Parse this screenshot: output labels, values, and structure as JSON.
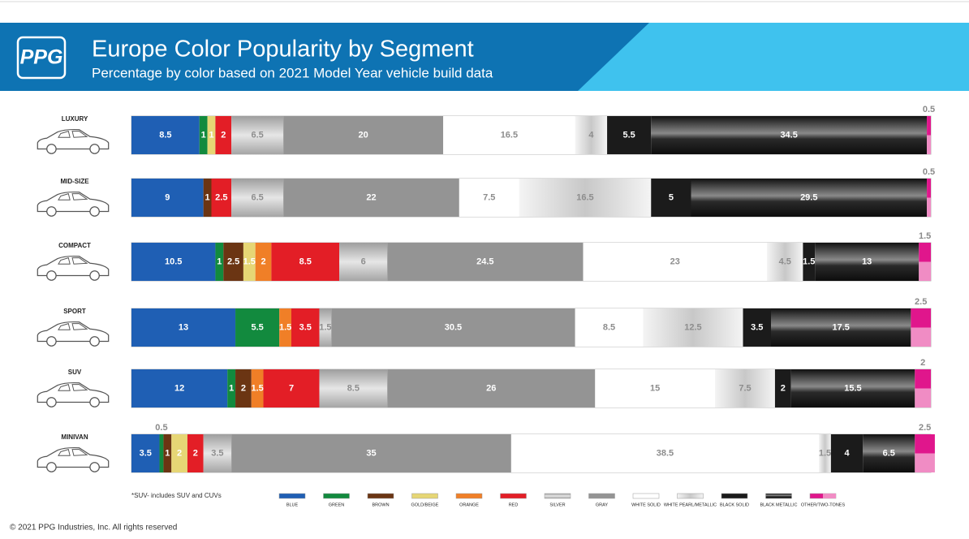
{
  "logo": "PPG",
  "copyright": "© 2021 PPG Industries, Inc. All rights reserved",
  "chart_data": {
    "type": "bar",
    "orientation": "horizontal",
    "stacked": true,
    "title": "Europe Color Popularity by Segment",
    "subtitle": "Percentage by color based on 2021 Model Year vehicle build data",
    "note": "*SUV- includes SUV and CUVs",
    "categories": [
      "LUXURY",
      "MID-SIZE",
      "COMPACT",
      "SPORT",
      "SUV",
      "MINIVAN"
    ],
    "xlim": [
      0,
      100
    ],
    "series": [
      {
        "name": "BLUE",
        "color": "#1f5fb4",
        "values": [
          8.5,
          9,
          10.5,
          13,
          12,
          3.5
        ]
      },
      {
        "name": "GREEN",
        "color": "#128a3e",
        "values": [
          1,
          null,
          1,
          5.5,
          1,
          0.5
        ]
      },
      {
        "name": "BROWN",
        "color": "#6b3513",
        "values": [
          null,
          1,
          2.5,
          null,
          2,
          1
        ]
      },
      {
        "name": "GOLD/BEIGE",
        "color": "#e6d675",
        "values": [
          1,
          null,
          1.5,
          null,
          null,
          2
        ]
      },
      {
        "name": "ORANGE",
        "color": "#f07f27",
        "values": [
          null,
          null,
          2,
          1.5,
          1.5,
          null
        ]
      },
      {
        "name": "RED",
        "color": "#e31e26",
        "values": [
          2,
          2.5,
          8.5,
          3.5,
          7,
          2
        ]
      },
      {
        "name": "SILVER",
        "color": "#bdbdbd",
        "values": [
          6.5,
          6.5,
          6,
          1.5,
          8.5,
          3.5
        ]
      },
      {
        "name": "GRAY",
        "color": "#949494",
        "values": [
          20,
          22,
          24.5,
          30.5,
          26,
          35
        ]
      },
      {
        "name": "WHITE SOLID",
        "color": "#ffffff",
        "values": [
          16.5,
          7.5,
          23,
          8.5,
          15,
          38.5
        ]
      },
      {
        "name": "WHITE PEARL/METALLIC",
        "color": "#e6e6e6",
        "values": [
          4,
          16.5,
          4.5,
          12.5,
          7.5,
          1.5
        ]
      },
      {
        "name": "BLACK SOLID",
        "color": "#1b1b1b",
        "values": [
          5.5,
          5,
          1.5,
          3.5,
          2,
          4
        ]
      },
      {
        "name": "BLACK METALLIC",
        "color": "#2e2e2e",
        "values": [
          34.5,
          29.5,
          13,
          17.5,
          15.5,
          6.5
        ]
      },
      {
        "name": "OTHER/TWO-TONES",
        "color": "#e0168c",
        "values": [
          0.5,
          0.5,
          1.5,
          2.5,
          2,
          2.5
        ]
      }
    ]
  }
}
